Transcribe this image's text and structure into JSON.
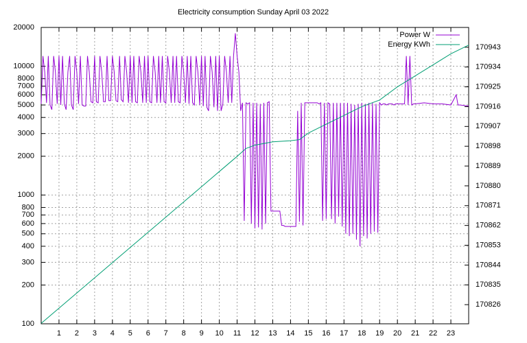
{
  "chart_data": {
    "type": "line",
    "title": "Electricity consumption Sunday April 03 2022",
    "xlim": [
      0,
      24
    ],
    "xticks": [
      1,
      2,
      3,
      4,
      5,
      6,
      7,
      8,
      9,
      10,
      11,
      12,
      13,
      14,
      15,
      16,
      17,
      18,
      19,
      20,
      21,
      22,
      23
    ],
    "ylim": [
      100,
      20000
    ],
    "ylog": true,
    "yticks": [
      100,
      200,
      300,
      400,
      500,
      600,
      700,
      800,
      1000,
      2000,
      3000,
      4000,
      5000,
      6000,
      7000,
      8000,
      10000,
      20000
    ],
    "y2lim": [
      170817.3,
      170952
    ],
    "y2ticks": [
      170826,
      170835,
      170844,
      170853,
      170862,
      170871,
      170880,
      170889,
      170898,
      170907,
      170916,
      170925,
      170934,
      170943
    ],
    "grid": true,
    "legend": "top-right",
    "series": [
      {
        "name": "Power W",
        "color": "#9400d3",
        "x": [
          0,
          0.1,
          0.2,
          0.3,
          0.4,
          0.5,
          0.6,
          0.7,
          0.8,
          0.9,
          1,
          1.1,
          1.2,
          1.3,
          1.4,
          1.5,
          1.6,
          1.7,
          1.8,
          1.9,
          2,
          2.1,
          2.2,
          2.3,
          2.4,
          2.5,
          2.6,
          2.7,
          2.8,
          2.9,
          3,
          3.1,
          3.2,
          3.3,
          3.4,
          3.5,
          3.6,
          3.7,
          3.8,
          3.9,
          4,
          4.1,
          4.2,
          4.3,
          4.4,
          4.5,
          4.6,
          4.7,
          4.8,
          4.9,
          5,
          5.1,
          5.2,
          5.3,
          5.4,
          5.5,
          5.6,
          5.7,
          5.8,
          5.9,
          6,
          6.1,
          6.2,
          6.3,
          6.4,
          6.5,
          6.6,
          6.7,
          6.8,
          6.9,
          7,
          7.1,
          7.2,
          7.3,
          7.4,
          7.5,
          7.6,
          7.7,
          7.8,
          7.9,
          8,
          8.1,
          8.2,
          8.3,
          8.4,
          8.5,
          8.6,
          8.7,
          8.8,
          8.9,
          9,
          9.1,
          9.2,
          9.3,
          9.4,
          9.5,
          9.6,
          9.7,
          9.8,
          9.9,
          10,
          10.1,
          10.2,
          10.3,
          10.4,
          10.5,
          10.6,
          10.7,
          10.8,
          10.9,
          11,
          11.1,
          11.2,
          11.3,
          11.4,
          11.5,
          11.6,
          11.7,
          11.8,
          11.9,
          12,
          12.1,
          12.2,
          12.3,
          12.4,
          12.5,
          12.6,
          12.7,
          12.8,
          12.9,
          13,
          13.1,
          13.2,
          13.3,
          13.4,
          13.5,
          13.6,
          13.7,
          13.8,
          13.9,
          14,
          14.1,
          14.2,
          14.3,
          14.4,
          14.5,
          14.6,
          14.7,
          14.8,
          14.9,
          15,
          15.1,
          15.2,
          15.3,
          15.4,
          15.5,
          15.6,
          15.7,
          15.8,
          15.9,
          16,
          16.1,
          16.2,
          16.3,
          16.4,
          16.5,
          16.6,
          16.7,
          16.8,
          16.9,
          17,
          17.1,
          17.2,
          17.3,
          17.4,
          17.5,
          17.6,
          17.7,
          17.8,
          17.9,
          18,
          18.1,
          18.2,
          18.3,
          18.4,
          18.5,
          18.6,
          18.7,
          18.8,
          18.9,
          19,
          19.1,
          19.2,
          19.3,
          19.4,
          19.5,
          19.6,
          19.7,
          19.8,
          19.9,
          20,
          20.1,
          20.2,
          20.3,
          20.4,
          20.5,
          20.6,
          20.7,
          20.8,
          20.9,
          21,
          21.5,
          22,
          22.5,
          23,
          23.3,
          23.4,
          23.5,
          24
        ],
        "values": [
          5100,
          12000,
          9000,
          5200,
          12000,
          5000,
          4600,
          12000,
          9000,
          5100,
          12000,
          5000,
          12000,
          5100,
          4600,
          9000,
          12000,
          5000,
          4600,
          12000,
          9000,
          5100,
          12000,
          5000,
          4900,
          4900,
          12000,
          9000,
          5300,
          5200,
          12000,
          5300,
          5200,
          12000,
          9000,
          5300,
          5300,
          12000,
          5400,
          5400,
          12000,
          9000,
          5400,
          5300,
          12000,
          5500,
          5300,
          12000,
          9000,
          5200,
          12000,
          5200,
          12000,
          5300,
          5200,
          12000,
          9000,
          5200,
          12000,
          5200,
          12000,
          5300,
          5200,
          12000,
          9000,
          5200,
          12000,
          5200,
          12000,
          5300,
          5200,
          12000,
          9000,
          5200,
          12000,
          5200,
          12000,
          5300,
          5200,
          12000,
          9000,
          5200,
          12000,
          5100,
          12000,
          5200,
          5000,
          12000,
          9000,
          5000,
          12000,
          4900,
          12000,
          4800,
          4500,
          12000,
          9000,
          4800,
          12000,
          4500,
          12000,
          4500,
          5100,
          12000,
          9000,
          5200,
          12000,
          5200,
          12000,
          18000,
          12000,
          9000,
          4500,
          5200,
          630,
          5200,
          5100,
          5200,
          600,
          5200,
          550,
          5200,
          560,
          5100,
          540,
          5200,
          600,
          5200,
          5300,
          750,
          750,
          750,
          750,
          750,
          750,
          580,
          580,
          570,
          570,
          570,
          570,
          570,
          570,
          570,
          4500,
          620,
          5200,
          580,
          5200,
          5200,
          5200,
          5200,
          5200,
          5200,
          5200,
          5200,
          5100,
          5200,
          630,
          5200,
          650,
          5200,
          5100,
          650,
          5200,
          600,
          5200,
          680,
          5200,
          570,
          5200,
          500,
          5200,
          480,
          5100,
          500,
          5000,
          450,
          5100,
          400,
          5200,
          480,
          5100,
          460,
          5200,
          500,
          5200,
          520,
          5100,
          510,
          5200,
          5000,
          5100,
          5100,
          5000,
          5100,
          5100,
          5100,
          5000,
          5100,
          5100,
          5100,
          5100,
          5100,
          5100,
          12000,
          5000,
          12000,
          5000,
          5100,
          5100,
          5200,
          5100,
          5100,
          5000,
          6000,
          5000,
          5000,
          4900
        ]
      },
      {
        "name": "Energy KWh",
        "color": "#009e73",
        "axis": "y2",
        "x": [
          0,
          1,
          2,
          3,
          4,
          5,
          6,
          7,
          8,
          9,
          10,
          11,
          11.5,
          12,
          13,
          14,
          14.5,
          15,
          16,
          17,
          18,
          19,
          20,
          21,
          22,
          23,
          24
        ],
        "values": [
          170817.5,
          170824.4,
          170831.3,
          170838.2,
          170845.1,
          170852,
          170858.9,
          170865.8,
          170872.7,
          170879.6,
          170886.5,
          170893.4,
          170897,
          170898.5,
          170900,
          170900.5,
          170901,
          170904,
          170908,
          170912,
          170916,
          170919,
          170925,
          170930,
          170935,
          170940,
          170944
        ]
      }
    ]
  }
}
